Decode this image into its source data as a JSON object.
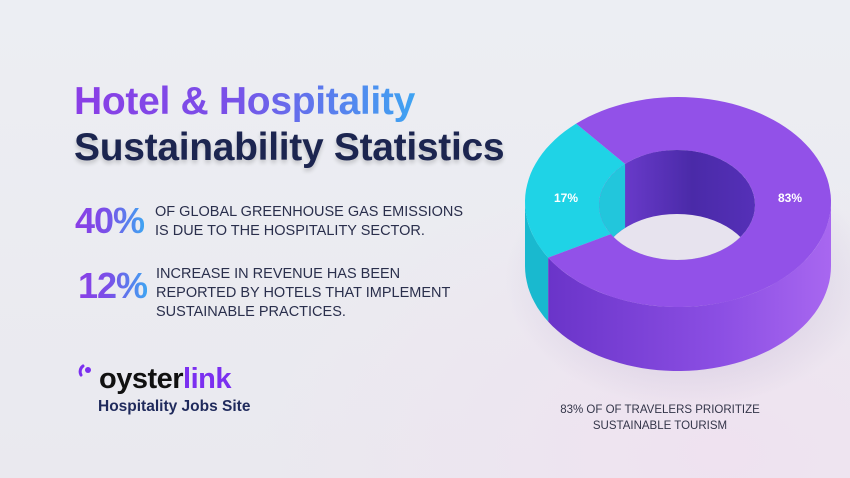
{
  "header": {
    "title_line1": "Hotel & Hospitality",
    "title_line2": "Sustainability Statistics"
  },
  "stats": [
    {
      "value": "40%",
      "lines": [
        "OF GLOBAL GREENHOUSE GAS EMISSIONS",
        "IS DUE TO THE HOSPITALITY SECTOR."
      ]
    },
    {
      "value": "12%",
      "lines": [
        "INCREASE IN REVENUE HAS BEEN",
        "REPORTED BY HOTELS THAT IMPLEMENT",
        "SUSTAINABLE PRACTICES."
      ]
    }
  ],
  "brand": {
    "logo_part1": "oyster",
    "logo_part2": "link",
    "tagline": "Hospitality Jobs Site",
    "icon": "oyster-logo-icon",
    "color": "#7b2ff0"
  },
  "chart_data": {
    "type": "pie",
    "style": "3d-donut",
    "slices": [
      {
        "label": "17%",
        "value": 17,
        "color": "#1fd3e6"
      },
      {
        "label": "83%",
        "value": 83,
        "color": "#9251e8"
      }
    ],
    "caption_lines": [
      "83% OF OF TRAVELERS PRIORITIZE",
      "SUSTAINABLE TOURISM"
    ]
  }
}
